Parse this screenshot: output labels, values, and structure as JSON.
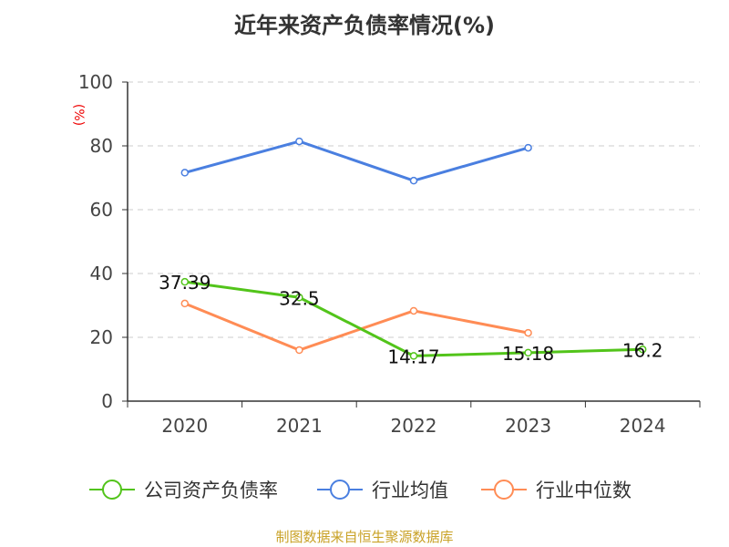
{
  "chart_data": {
    "type": "line",
    "title": "近年来资产负债率情况(%)",
    "ylabel": "(%)",
    "xlabel": "",
    "ylim": [
      0,
      100
    ],
    "yticks": [
      0,
      20,
      40,
      60,
      80,
      100
    ],
    "grid": true,
    "legend_position": "bottom",
    "categories": [
      "2020",
      "2021",
      "2022",
      "2023",
      "2024"
    ],
    "series": [
      {
        "name": "公司资产负债率",
        "color": "#52c41a",
        "values": [
          37.39,
          32.5,
          14.17,
          15.18,
          16.2
        ],
        "labels": [
          "37.39",
          "32.5",
          "14.17",
          "15.18",
          "16.2"
        ]
      },
      {
        "name": "行业均值",
        "color": "#4a7fe0",
        "values": [
          71.6,
          81.4,
          69.1,
          79.4,
          null
        ]
      },
      {
        "name": "行业中位数",
        "color": "#ff8c55",
        "values": [
          30.6,
          16.0,
          28.3,
          21.4,
          null
        ]
      }
    ]
  },
  "footer": "制图数据来自恒生聚源数据库"
}
